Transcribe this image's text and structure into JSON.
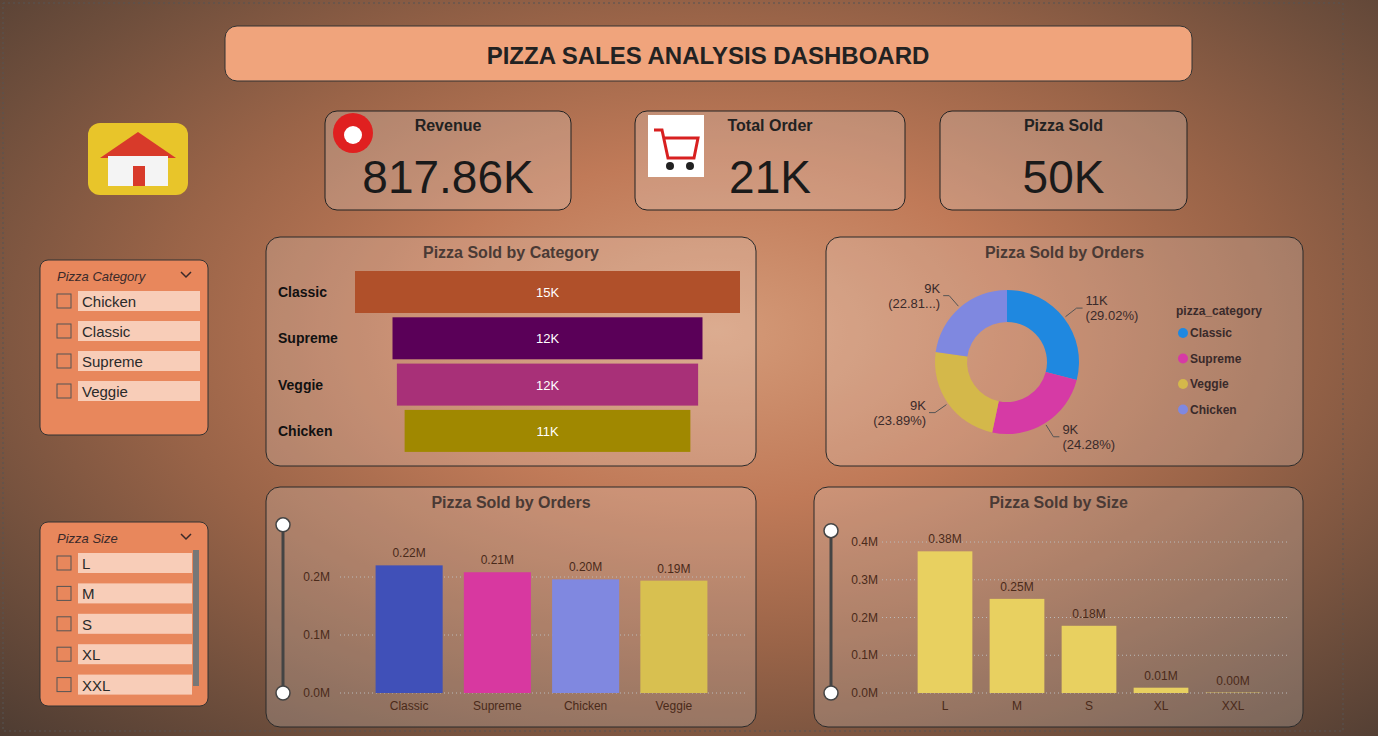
{
  "header": {
    "title": "PIZZA SALES ANALYSIS DASHBOARD"
  },
  "kpis": [
    {
      "label": "Revenue",
      "value": "817.86K"
    },
    {
      "label": "Total Order",
      "value": "21K"
    },
    {
      "label": "Pizza Sold",
      "value": "50K"
    }
  ],
  "slicers": [
    {
      "title": "Pizza Category",
      "items": [
        "Chicken",
        "Classic",
        "Supreme",
        "Veggie"
      ]
    },
    {
      "title": "Pizza Size",
      "items": [
        "L",
        "M",
        "S",
        "XL",
        "XXL"
      ]
    }
  ],
  "chart_data": [
    {
      "type": "funnel",
      "title": "Pizza Sold by Category",
      "categories": [
        "Classic",
        "Supreme",
        "Veggie",
        "Chicken"
      ],
      "values": [
        14.888,
        11.987,
        11.649,
        11.05
      ],
      "value_labels": [
        "15K",
        "12K",
        "12K",
        "11K"
      ],
      "colors": [
        "#b0502a",
        "#5a0058",
        "#a83078",
        "#a08800"
      ],
      "data_labels": true
    },
    {
      "type": "donut",
      "title": "Pizza Sold by Orders",
      "categories": [
        "Classic",
        "Supreme",
        "Veggie",
        "Chicken"
      ],
      "values": [
        29.02,
        24.28,
        23.89,
        22.81
      ],
      "value_labels": [
        "11K (29.02%)",
        "9K (24.28%)",
        "9K (23.89%)",
        "9K (22.81...)"
      ],
      "colors": [
        "#1f88e0",
        "#d63aa5",
        "#d4b84a",
        "#7f88e0"
      ],
      "legend_title": "pizza_category",
      "legend": "right",
      "data_labels": true
    },
    {
      "type": "bar",
      "title": "Pizza Sold by Orders",
      "categories": [
        "Classic",
        "Supreme",
        "Chicken",
        "Veggie"
      ],
      "values": [
        0.220053,
        0.208197,
        0.19592,
        0.19369
      ],
      "value_labels": [
        "0.22M",
        "0.21M",
        "0.20M",
        "0.19M"
      ],
      "colors": [
        "#4050b8",
        "#d838a0",
        "#8088e0",
        "#d8c050"
      ],
      "ylim": [
        0,
        0.29
      ],
      "yticks": [
        {
          "value": 0,
          "label": "0.0M"
        },
        {
          "value": 0.1,
          "label": "0.1M"
        },
        {
          "value": 0.2,
          "label": "0.2M"
        }
      ],
      "grid": true,
      "data_labels": true
    },
    {
      "type": "bar",
      "title": "Pizza Sold by Size",
      "categories": [
        "L",
        "M",
        "S",
        "XL",
        "XXL"
      ],
      "values": [
        0.375319,
        0.249382,
        0.178077,
        0.014076,
        0.001007
      ],
      "value_labels": [
        "0.38M",
        "0.25M",
        "0.18M",
        "0.01M",
        "0.00M"
      ],
      "color": "#e8d060",
      "ylim": [
        0,
        0.43
      ],
      "yticks": [
        {
          "value": 0,
          "label": "0.0M"
        },
        {
          "value": 0.1,
          "label": "0.1M"
        },
        {
          "value": 0.2,
          "label": "0.2M"
        },
        {
          "value": 0.3,
          "label": "0.3M"
        },
        {
          "value": 0.4,
          "label": "0.4M"
        }
      ],
      "grid": true,
      "data_labels": true
    }
  ]
}
